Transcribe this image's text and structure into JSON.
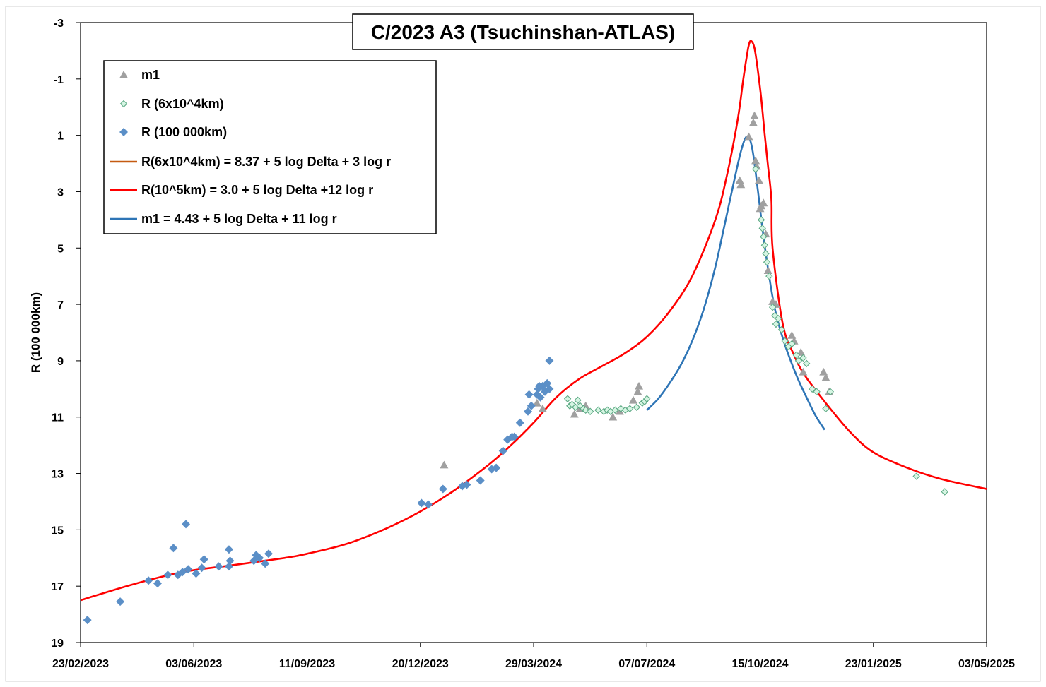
{
  "chart_data": {
    "type": "scatter",
    "title": "C/2023 A3 (Tsuchinshan-ATLAS)",
    "ylabel": "R (100 000km)",
    "xlabel": "",
    "x_range": [
      "2023-02-23",
      "2025-05-03"
    ],
    "ylim": [
      -3,
      19
    ],
    "y_inverted": true,
    "x_ticks": [
      "2023-02-23",
      "2023-06-03",
      "2023-09-11",
      "2023-12-20",
      "2024-03-29",
      "2024-07-07",
      "2024-10-15",
      "2025-01-23",
      "2025-05-03"
    ],
    "x_tick_labels": [
      "23/02/2023",
      "03/06/2023",
      "11/09/2023",
      "20/12/2023",
      "29/03/2024",
      "07/07/2024",
      "15/10/2024",
      "23/01/2025",
      "03/05/2025"
    ],
    "y_ticks": [
      -3,
      -1,
      1,
      3,
      5,
      7,
      9,
      11,
      13,
      15,
      17,
      19
    ],
    "y_tick_labels": [
      "-3",
      "-1",
      "1",
      "3",
      "5",
      "7",
      "9",
      "11",
      "13",
      "15",
      "17",
      "19"
    ],
    "grid": false,
    "legend_placement": "top-left",
    "colors": {
      "m1": "#a0a0a0",
      "r60_fill": "#d6f5e3",
      "r60_stroke": "#5aa882",
      "r100": "#5b8fc7",
      "fit_r60": "#c55a11",
      "fit_r100": "#ff0000",
      "fit_m1": "#2e75b6"
    },
    "series": [
      {
        "name": "m1",
        "kind": "points",
        "marker": "triangle",
        "points": [
          [
            "2024-01-10",
            12.7
          ],
          [
            "2024-04-06",
            10.7
          ],
          [
            "2024-04-01",
            10.5
          ],
          [
            "2024-05-04",
            10.9
          ],
          [
            "2024-05-09",
            10.7
          ],
          [
            "2024-05-14",
            10.6
          ],
          [
            "2024-06-07",
            11.0
          ],
          [
            "2024-06-13",
            10.8
          ],
          [
            "2024-06-25",
            10.4
          ],
          [
            "2024-06-29",
            10.1
          ],
          [
            "2024-06-30",
            9.9
          ],
          [
            "2024-09-27",
            2.6
          ],
          [
            "2024-09-28",
            2.75
          ],
          [
            "2024-10-05",
            1.05
          ],
          [
            "2024-10-09",
            0.55
          ],
          [
            "2024-10-10",
            0.3
          ],
          [
            "2024-10-11",
            1.9
          ],
          [
            "2024-10-12",
            2.1
          ],
          [
            "2024-10-14",
            2.6
          ],
          [
            "2024-10-15",
            3.6
          ],
          [
            "2024-10-16",
            3.5
          ],
          [
            "2024-10-18",
            3.4
          ],
          [
            "2024-10-20",
            4.5
          ],
          [
            "2024-10-22",
            5.8
          ],
          [
            "2024-10-26",
            6.9
          ],
          [
            "2024-10-29",
            7.0
          ],
          [
            "2024-11-12",
            8.1
          ],
          [
            "2024-11-14",
            8.3
          ],
          [
            "2024-11-20",
            8.7
          ],
          [
            "2024-11-22",
            9.4
          ],
          [
            "2024-12-10",
            9.4
          ],
          [
            "2024-12-12",
            9.6
          ],
          [
            "2024-12-15",
            10.1
          ]
        ]
      },
      {
        "name": "R (6x10^4km)",
        "kind": "points",
        "marker": "diamond-open",
        "points": [
          [
            "2024-04-28",
            10.35
          ],
          [
            "2024-04-30",
            10.6
          ],
          [
            "2024-05-02",
            10.55
          ],
          [
            "2024-05-05",
            10.65
          ],
          [
            "2024-05-07",
            10.4
          ],
          [
            "2024-05-09",
            10.6
          ],
          [
            "2024-05-12",
            10.7
          ],
          [
            "2024-05-14",
            10.75
          ],
          [
            "2024-05-18",
            10.8
          ],
          [
            "2024-05-25",
            10.75
          ],
          [
            "2024-05-30",
            10.8
          ],
          [
            "2024-06-02",
            10.75
          ],
          [
            "2024-06-05",
            10.8
          ],
          [
            "2024-06-09",
            10.75
          ],
          [
            "2024-06-14",
            10.7
          ],
          [
            "2024-06-18",
            10.75
          ],
          [
            "2024-06-22",
            10.7
          ],
          [
            "2024-06-28",
            10.65
          ],
          [
            "2024-07-03",
            10.5
          ],
          [
            "2024-07-05",
            10.45
          ],
          [
            "2024-07-07",
            10.35
          ],
          [
            "2024-10-11",
            2.2
          ],
          [
            "2024-10-16",
            4.0
          ],
          [
            "2024-10-17",
            4.3
          ],
          [
            "2024-10-18",
            4.6
          ],
          [
            "2024-10-19",
            4.9
          ],
          [
            "2024-10-20",
            5.2
          ],
          [
            "2024-10-21",
            5.5
          ],
          [
            "2024-10-23",
            6.0
          ],
          [
            "2024-10-26",
            7.1
          ],
          [
            "2024-10-28",
            7.4
          ],
          [
            "2024-10-29",
            7.7
          ],
          [
            "2024-10-31",
            7.5
          ],
          [
            "2024-11-03",
            7.9
          ],
          [
            "2024-11-06",
            8.3
          ],
          [
            "2024-11-09",
            8.5
          ],
          [
            "2024-11-12",
            8.4
          ],
          [
            "2024-11-16",
            8.8
          ],
          [
            "2024-11-18",
            9.0
          ],
          [
            "2024-11-22",
            8.9
          ],
          [
            "2024-11-25",
            9.1
          ],
          [
            "2024-11-30",
            10.0
          ],
          [
            "2024-12-04",
            10.1
          ],
          [
            "2024-12-12",
            10.7
          ],
          [
            "2024-12-16",
            10.1
          ],
          [
            "2025-03-02",
            13.1
          ],
          [
            "2025-03-27",
            13.65
          ]
        ]
      },
      {
        "name": "R (100 000km)",
        "kind": "points",
        "marker": "diamond",
        "points": [
          [
            "2023-03-01",
            18.2
          ],
          [
            "2023-03-30",
            17.55
          ],
          [
            "2023-04-24",
            16.8
          ],
          [
            "2023-05-02",
            16.9
          ],
          [
            "2023-05-11",
            16.6
          ],
          [
            "2023-05-16",
            15.65
          ],
          [
            "2023-05-20",
            16.6
          ],
          [
            "2023-05-24",
            16.5
          ],
          [
            "2023-05-27",
            14.8
          ],
          [
            "2023-05-29",
            16.4
          ],
          [
            "2023-06-05",
            16.55
          ],
          [
            "2023-06-10",
            16.35
          ],
          [
            "2023-06-12",
            16.05
          ],
          [
            "2023-06-25",
            16.3
          ],
          [
            "2023-07-04",
            16.3
          ],
          [
            "2023-07-04",
            15.7
          ],
          [
            "2023-07-05",
            16.1
          ],
          [
            "2023-07-26",
            16.1
          ],
          [
            "2023-07-28",
            15.9
          ],
          [
            "2023-07-31",
            16.0
          ],
          [
            "2023-08-05",
            16.2
          ],
          [
            "2023-08-08",
            15.85
          ],
          [
            "2023-12-21",
            14.05
          ],
          [
            "2023-12-27",
            14.1
          ],
          [
            "2024-01-09",
            13.55
          ],
          [
            "2024-01-26",
            13.45
          ],
          [
            "2024-01-30",
            13.4
          ],
          [
            "2024-02-11",
            13.25
          ],
          [
            "2024-02-21",
            12.85
          ],
          [
            "2024-02-25",
            12.8
          ],
          [
            "2024-03-02",
            12.2
          ],
          [
            "2024-03-06",
            11.8
          ],
          [
            "2024-03-10",
            11.7
          ],
          [
            "2024-03-12",
            11.7
          ],
          [
            "2024-03-17",
            11.2
          ],
          [
            "2024-03-24",
            10.8
          ],
          [
            "2024-03-25",
            10.2
          ],
          [
            "2024-03-27",
            10.6
          ],
          [
            "2024-04-01",
            10.2
          ],
          [
            "2024-04-02",
            10.0
          ],
          [
            "2024-04-03",
            9.9
          ],
          [
            "2024-04-04",
            10.3
          ],
          [
            "2024-04-06",
            9.9
          ],
          [
            "2024-04-08",
            10.1
          ],
          [
            "2024-04-10",
            9.8
          ],
          [
            "2024-04-12",
            10.0
          ],
          [
            "2024-04-12",
            9.0
          ]
        ]
      },
      {
        "name": "R(6x10^4km) = 8.37 + 5 log Delta + 3 log r",
        "kind": "line",
        "points": []
      },
      {
        "name": "R(10^5km) = 3.0 + 5 log Delta +12 log r",
        "kind": "line",
        "points": [
          [
            "2023-02-23",
            17.5
          ],
          [
            "2023-04-09",
            16.95
          ],
          [
            "2023-05-24",
            16.5
          ],
          [
            "2023-07-08",
            16.25
          ],
          [
            "2023-08-22",
            16.0
          ],
          [
            "2023-09-11",
            15.85
          ],
          [
            "2023-10-16",
            15.5
          ],
          [
            "2023-11-20",
            14.95
          ],
          [
            "2023-12-20",
            14.35
          ],
          [
            "2024-01-19",
            13.6
          ],
          [
            "2024-02-18",
            12.7
          ],
          [
            "2024-03-09",
            12.0
          ],
          [
            "2024-03-29",
            11.2
          ],
          [
            "2024-04-18",
            10.3
          ],
          [
            "2024-05-08",
            9.65
          ],
          [
            "2024-05-28",
            9.2
          ],
          [
            "2024-06-17",
            8.75
          ],
          [
            "2024-07-07",
            8.15
          ],
          [
            "2024-07-27",
            7.25
          ],
          [
            "2024-08-16",
            6.0
          ],
          [
            "2024-09-05",
            4.05
          ],
          [
            "2024-09-15",
            2.55
          ],
          [
            "2024-09-25",
            0.5
          ],
          [
            "2024-09-30",
            -0.95
          ],
          [
            "2024-10-03",
            -1.75
          ],
          [
            "2024-10-05",
            -2.2
          ],
          [
            "2024-10-07",
            -2.35
          ],
          [
            "2024-10-10",
            -2.1
          ],
          [
            "2024-10-13",
            -1.3
          ],
          [
            "2024-10-16",
            -0.3
          ],
          [
            "2024-10-19",
            0.95
          ],
          [
            "2024-10-22",
            2.1
          ],
          [
            "2024-10-25",
            3.3
          ],
          [
            "2024-10-26",
            5.0
          ],
          [
            "2024-11-04",
            7.7
          ],
          [
            "2024-11-14",
            8.8
          ],
          [
            "2024-11-24",
            9.55
          ],
          [
            "2024-12-14",
            10.6
          ],
          [
            "2025-01-03",
            11.55
          ],
          [
            "2025-01-23",
            12.25
          ],
          [
            "2025-02-22",
            12.8
          ],
          [
            "2025-03-24",
            13.2
          ],
          [
            "2025-05-03",
            13.55
          ]
        ]
      },
      {
        "name": "m1 = 4.43 + 5 log Delta + 11 log r",
        "kind": "line",
        "points": [
          [
            "2024-07-07",
            10.75
          ],
          [
            "2024-07-17",
            10.35
          ],
          [
            "2024-07-27",
            9.8
          ],
          [
            "2024-08-06",
            9.15
          ],
          [
            "2024-08-16",
            8.3
          ],
          [
            "2024-08-26",
            7.2
          ],
          [
            "2024-09-05",
            5.75
          ],
          [
            "2024-09-13",
            4.3
          ],
          [
            "2024-09-20",
            3.0
          ],
          [
            "2024-09-26",
            1.9
          ],
          [
            "2024-09-30",
            1.3
          ],
          [
            "2024-10-03",
            1.05
          ],
          [
            "2024-10-06",
            1.15
          ],
          [
            "2024-10-09",
            1.7
          ],
          [
            "2024-10-13",
            2.95
          ],
          [
            "2024-10-18",
            4.6
          ],
          [
            "2024-10-23",
            6.0
          ],
          [
            "2024-10-28",
            7.15
          ],
          [
            "2024-11-04",
            8.2
          ],
          [
            "2024-11-11",
            9.0
          ],
          [
            "2024-11-18",
            9.7
          ],
          [
            "2024-11-25",
            10.3
          ],
          [
            "2024-12-03",
            10.95
          ],
          [
            "2024-12-11",
            11.45
          ]
        ]
      }
    ]
  }
}
